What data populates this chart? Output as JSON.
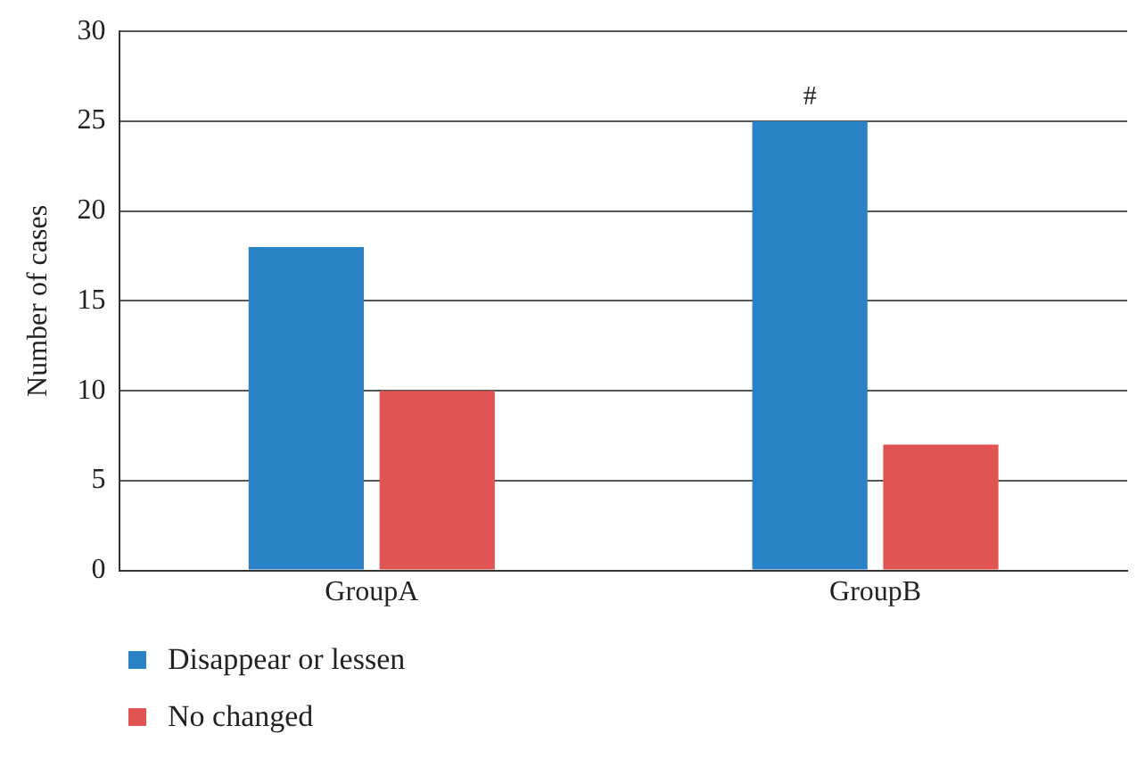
{
  "chart_data": {
    "type": "bar",
    "ylabel": "Number of cases",
    "categories": [
      "GroupA",
      "GroupB"
    ],
    "series": [
      {
        "name": "Disappear or lessen",
        "color": "#2a82c4",
        "values": [
          18,
          25
        ]
      },
      {
        "name": "No changed",
        "color": "#e05554",
        "values": [
          10,
          7
        ]
      }
    ],
    "ylim": [
      0,
      30
    ],
    "yticks": [
      0,
      5,
      10,
      15,
      20,
      25,
      30
    ],
    "grid": "y",
    "legend": "bottom left",
    "annotations": [
      {
        "text": "#",
        "x": "GroupB",
        "y": 25
      }
    ]
  }
}
